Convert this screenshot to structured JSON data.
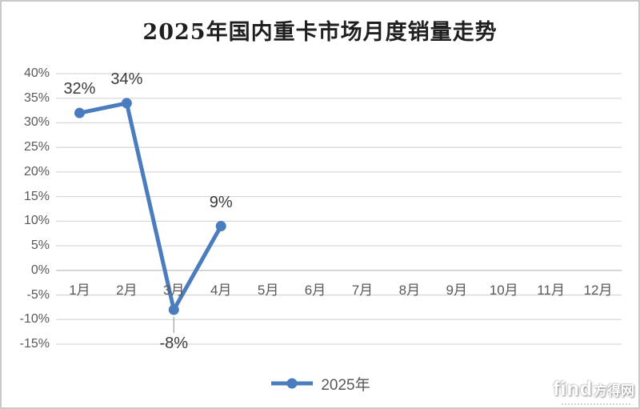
{
  "chart_data": {
    "type": "line",
    "title": "2025年国内重卡市场月度销量走势",
    "categories": [
      "1月",
      "2月",
      "3月",
      "4月",
      "5月",
      "6月",
      "7月",
      "8月",
      "9月",
      "10月",
      "11月",
      "12月"
    ],
    "series": [
      {
        "name": "2025年",
        "values": [
          32,
          34,
          -8,
          9
        ],
        "data_labels": [
          "32%",
          "34%",
          "-8%",
          "9%"
        ],
        "color": "#4A7CBE"
      }
    ],
    "ylim": [
      -15,
      40
    ],
    "ytick_step": 5,
    "ytick_labels": [
      "40%",
      "35%",
      "30%",
      "25%",
      "20%",
      "15%",
      "10%",
      "5%",
      "0%",
      "-5%",
      "-10%",
      "-15%"
    ],
    "grid": true,
    "legend_position": "bottom",
    "colors": {
      "gridline": "#d9d9d9",
      "zero_axis": "#c6c6c6",
      "tick_label": "#595959",
      "data_label": "#3b3b3b",
      "leader_line": "#a6a6a6"
    }
  },
  "legend": {
    "label": "2025年"
  },
  "watermark": {
    "latin": "find",
    "cjk": "方得网"
  }
}
